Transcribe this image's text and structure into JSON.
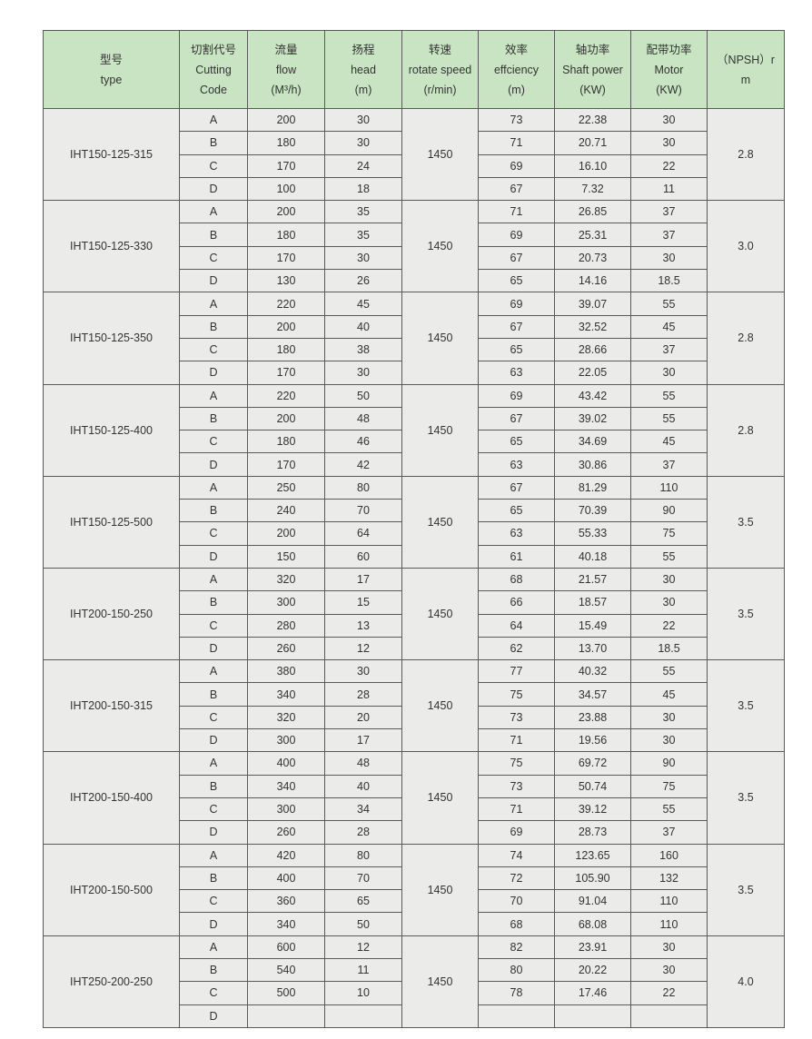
{
  "header": [
    [
      "型号",
      "type"
    ],
    [
      "切割代号",
      "Cutting",
      "Code"
    ],
    [
      "流量",
      "flow",
      "(M³/h)"
    ],
    [
      "扬程",
      "head",
      "(m)"
    ],
    [
      "转速",
      "rotate speed",
      "(r/min)"
    ],
    [
      "效率",
      "effciency",
      "(m)"
    ],
    [
      "轴功率",
      "Shaft power",
      "(KW)"
    ],
    [
      "配带功率",
      "Motor",
      "(KW)"
    ],
    [
      "（NPSH）r",
      "m"
    ]
  ],
  "colors": {
    "header_bg": "#c8e4c2",
    "cell_bg": "#ebebea",
    "border": "#5a5a5a"
  },
  "groups": [
    {
      "model": "IHT150-125-315",
      "speed": "1450",
      "npsh": "2.8",
      "rows": [
        [
          "A",
          "200",
          "30",
          "73",
          "22.38",
          "30"
        ],
        [
          "B",
          "180",
          "30",
          "71",
          "20.71",
          "30"
        ],
        [
          "C",
          "170",
          "24",
          "69",
          "16.10",
          "22"
        ],
        [
          "D",
          "100",
          "18",
          "67",
          "7.32",
          "11"
        ]
      ]
    },
    {
      "model": "IHT150-125-330",
      "speed": "1450",
      "npsh": "3.0",
      "rows": [
        [
          "A",
          "200",
          "35",
          "71",
          "26.85",
          "37"
        ],
        [
          "B",
          "180",
          "35",
          "69",
          "25.31",
          "37"
        ],
        [
          "C",
          "170",
          "30",
          "67",
          "20.73",
          "30"
        ],
        [
          "D",
          "130",
          "26",
          "65",
          "14.16",
          "18.5"
        ]
      ]
    },
    {
      "model": "IHT150-125-350",
      "speed": "1450",
      "npsh": "2.8",
      "rows": [
        [
          "A",
          "220",
          "45",
          "69",
          "39.07",
          "55"
        ],
        [
          "B",
          "200",
          "40",
          "67",
          "32.52",
          "45"
        ],
        [
          "C",
          "180",
          "38",
          "65",
          "28.66",
          "37"
        ],
        [
          "D",
          "170",
          "30",
          "63",
          "22.05",
          "30"
        ]
      ]
    },
    {
      "model": "IHT150-125-400",
      "speed": "1450",
      "npsh": "2.8",
      "rows": [
        [
          "A",
          "220",
          "50",
          "69",
          "43.42",
          "55"
        ],
        [
          "B",
          "200",
          "48",
          "67",
          "39.02",
          "55"
        ],
        [
          "C",
          "180",
          "46",
          "65",
          "34.69",
          "45"
        ],
        [
          "D",
          "170",
          "42",
          "63",
          "30.86",
          "37"
        ]
      ]
    },
    {
      "model": "IHT150-125-500",
      "speed": "1450",
      "npsh": "3.5",
      "rows": [
        [
          "A",
          "250",
          "80",
          "67",
          "81.29",
          "110"
        ],
        [
          "B",
          "240",
          "70",
          "65",
          "70.39",
          "90"
        ],
        [
          "C",
          "200",
          "64",
          "63",
          "55.33",
          "75"
        ],
        [
          "D",
          "150",
          "60",
          "61",
          "40.18",
          "55"
        ]
      ]
    },
    {
      "model": "IHT200-150-250",
      "speed": "1450",
      "npsh": "3.5",
      "rows": [
        [
          "A",
          "320",
          "17",
          "68",
          "21.57",
          "30"
        ],
        [
          "B",
          "300",
          "15",
          "66",
          "18.57",
          "30"
        ],
        [
          "C",
          "280",
          "13",
          "64",
          "15.49",
          "22"
        ],
        [
          "D",
          "260",
          "12",
          "62",
          "13.70",
          "18.5"
        ]
      ]
    },
    {
      "model": "IHT200-150-315",
      "speed": "1450",
      "npsh": "3.5",
      "rows": [
        [
          "A",
          "380",
          "30",
          "77",
          "40.32",
          "55"
        ],
        [
          "B",
          "340",
          "28",
          "75",
          "34.57",
          "45"
        ],
        [
          "C",
          "320",
          "20",
          "73",
          "23.88",
          "30"
        ],
        [
          "D",
          "300",
          "17",
          "71",
          "19.56",
          "30"
        ]
      ]
    },
    {
      "model": "IHT200-150-400",
      "speed": "1450",
      "npsh": "3.5",
      "rows": [
        [
          "A",
          "400",
          "48",
          "75",
          "69.72",
          "90"
        ],
        [
          "B",
          "340",
          "40",
          "73",
          "50.74",
          "75"
        ],
        [
          "C",
          "300",
          "34",
          "71",
          "39.12",
          "55"
        ],
        [
          "D",
          "260",
          "28",
          "69",
          "28.73",
          "37"
        ]
      ]
    },
    {
      "model": "IHT200-150-500",
      "speed": "1450",
      "npsh": "3.5",
      "rows": [
        [
          "A",
          "420",
          "80",
          "74",
          "123.65",
          "160"
        ],
        [
          "B",
          "400",
          "70",
          "72",
          "105.90",
          "132"
        ],
        [
          "C",
          "360",
          "65",
          "70",
          "91.04",
          "110"
        ],
        [
          "D",
          "340",
          "50",
          "68",
          "68.08",
          "110"
        ]
      ]
    },
    {
      "model": "IHT250-200-250",
      "speed": "1450",
      "npsh": "4.0",
      "rows": [
        [
          "A",
          "600",
          "12",
          "82",
          "23.91",
          "30"
        ],
        [
          "B",
          "540",
          "11",
          "80",
          "20.22",
          "30"
        ],
        [
          "C",
          "500",
          "10",
          "78",
          "17.46",
          "22"
        ],
        [
          "D",
          "",
          "",
          "",
          "",
          ""
        ]
      ]
    }
  ]
}
